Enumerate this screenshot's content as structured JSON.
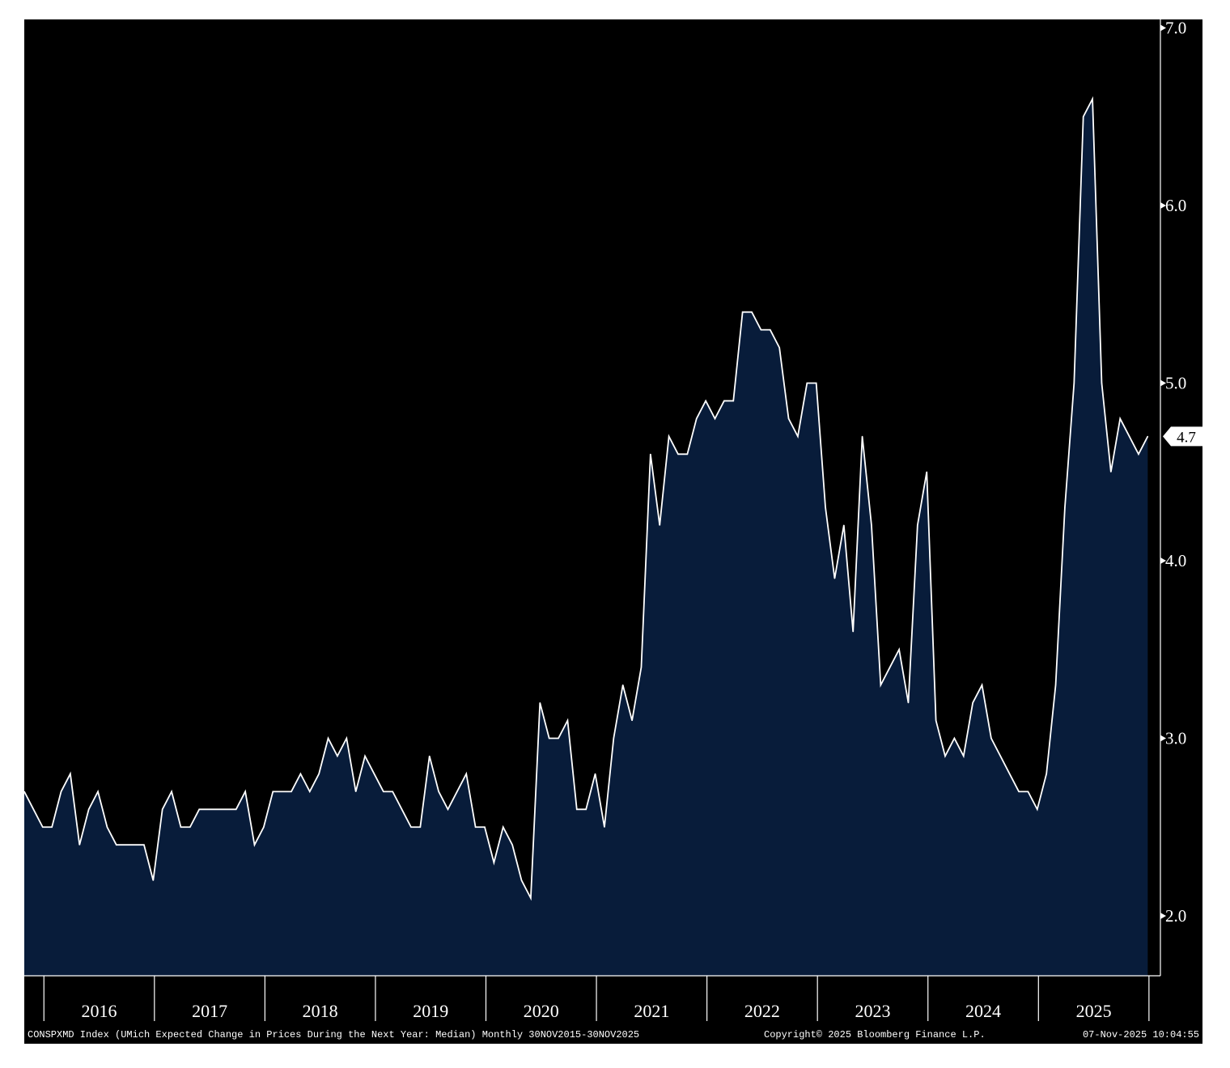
{
  "chart_data": {
    "type": "area",
    "x_start": "2015-11",
    "x_end": "2025-10",
    "frequency": "monthly",
    "y_values": [
      2.7,
      2.6,
      2.5,
      2.5,
      2.7,
      2.8,
      2.4,
      2.6,
      2.7,
      2.5,
      2.4,
      2.4,
      2.4,
      2.4,
      2.2,
      2.6,
      2.7,
      2.5,
      2.5,
      2.6,
      2.6,
      2.6,
      2.6,
      2.6,
      2.7,
      2.4,
      2.5,
      2.7,
      2.7,
      2.7,
      2.8,
      2.7,
      2.8,
      3.0,
      2.9,
      3.0,
      2.7,
      2.9,
      2.8,
      2.7,
      2.7,
      2.6,
      2.5,
      2.5,
      2.9,
      2.7,
      2.6,
      2.7,
      2.8,
      2.5,
      2.5,
      2.3,
      2.5,
      2.4,
      2.2,
      2.1,
      3.2,
      3.0,
      3.0,
      3.1,
      2.6,
      2.6,
      2.8,
      2.5,
      3.0,
      3.3,
      3.1,
      3.4,
      4.6,
      4.2,
      4.7,
      4.6,
      4.6,
      4.8,
      4.9,
      4.8,
      4.9,
      4.9,
      5.4,
      5.4,
      5.3,
      5.3,
      5.2,
      4.8,
      4.7,
      5.0,
      5.0,
      4.3,
      3.9,
      4.2,
      3.6,
      4.7,
      4.2,
      3.3,
      3.4,
      3.5,
      3.2,
      4.2,
      4.5,
      3.1,
      2.9,
      3.0,
      2.9,
      3.2,
      3.3,
      3.0,
      2.9,
      2.8,
      2.7,
      2.7,
      2.6,
      2.8,
      3.3,
      4.3,
      5.0,
      6.5,
      6.6,
      5.0,
      4.5,
      4.8,
      4.7,
      4.6,
      4.7
    ],
    "ylim": [
      1.65,
      7.05
    ],
    "y_ticks": [
      "2.0",
      "3.0",
      "4.0",
      "5.0",
      "6.0",
      "7.0"
    ],
    "x_ticks": [
      "2016",
      "2017",
      "2018",
      "2019",
      "2020",
      "2021",
      "2022",
      "2023",
      "2024",
      "2025"
    ],
    "y_axis_side": "right",
    "grid": false,
    "last_value_label": "4.7",
    "colors": {
      "background": "#000000",
      "area_fill": "#081c3a",
      "line": "#ffffff",
      "text": "#ffffff",
      "last_value_tag": "#ffffff"
    }
  },
  "footer": {
    "description": "CONSPXMD Index (UMich Expected Change in Prices During the Next Year: Median) Monthly 30NOV2015-30NOV2025",
    "copyright": "Copyright© 2025 Bloomberg Finance L.P.",
    "timestamp": "07-Nov-2025 10:04:55"
  }
}
